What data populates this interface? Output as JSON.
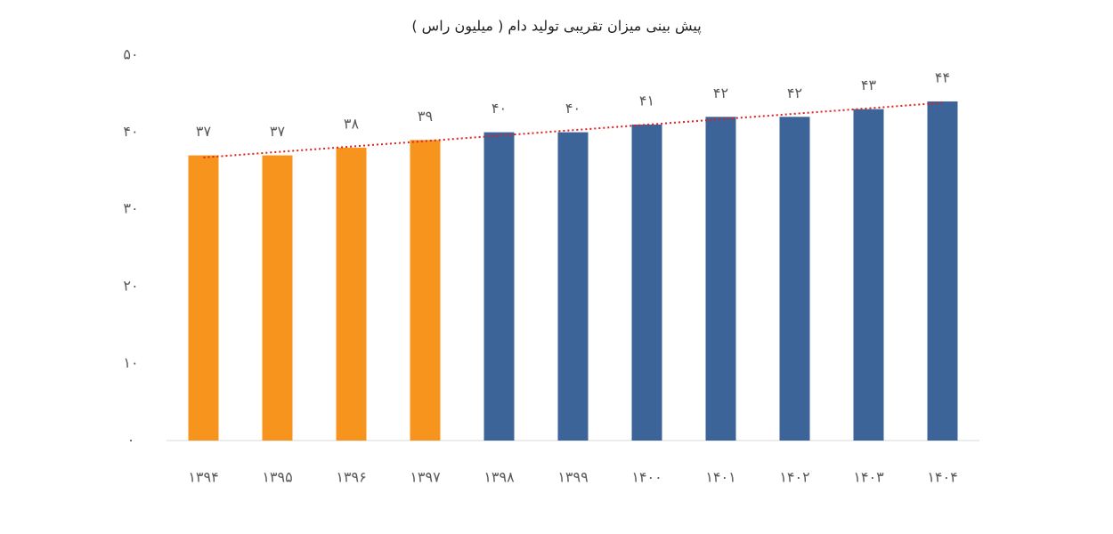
{
  "chart_data": {
    "type": "bar",
    "title": "پیش بینی میزان تقریبی تولید دام ( میلیون راس )",
    "categories": [
      "۱۳۹۴",
      "۱۳۹۵",
      "۱۳۹۶",
      "۱۳۹۷",
      "۱۳۹۸",
      "۱۳۹۹",
      "۱۴۰۰",
      "۱۴۰۱",
      "۱۴۰۲",
      "۱۴۰۳",
      "۱۴۰۴"
    ],
    "values": [
      37,
      37,
      38,
      39,
      40,
      40,
      41,
      42,
      42,
      43,
      44
    ],
    "value_labels": [
      "۳۷",
      "۳۷",
      "۳۸",
      "۳۹",
      "۴۰",
      "۴۰",
      "۴۱",
      "۴۲",
      "۴۲",
      "۴۳",
      "۴۴"
    ],
    "colors": [
      "#f7941d",
      "#f7941d",
      "#f7941d",
      "#f7941d",
      "#3d6499",
      "#3d6499",
      "#3d6499",
      "#3d6499",
      "#3d6499",
      "#3d6499",
      "#3d6499"
    ],
    "ylim": [
      0,
      50
    ],
    "yticks": [
      {
        "value": 0,
        "label": "۰"
      },
      {
        "value": 10,
        "label": "۱۰"
      },
      {
        "value": 20,
        "label": "۲۰"
      },
      {
        "value": 30,
        "label": "۳۰"
      },
      {
        "value": 40,
        "label": "۴۰"
      },
      {
        "value": 50,
        "label": "۵۰"
      }
    ],
    "grid": false,
    "trendline": true,
    "trendline_color": "#e02020"
  }
}
